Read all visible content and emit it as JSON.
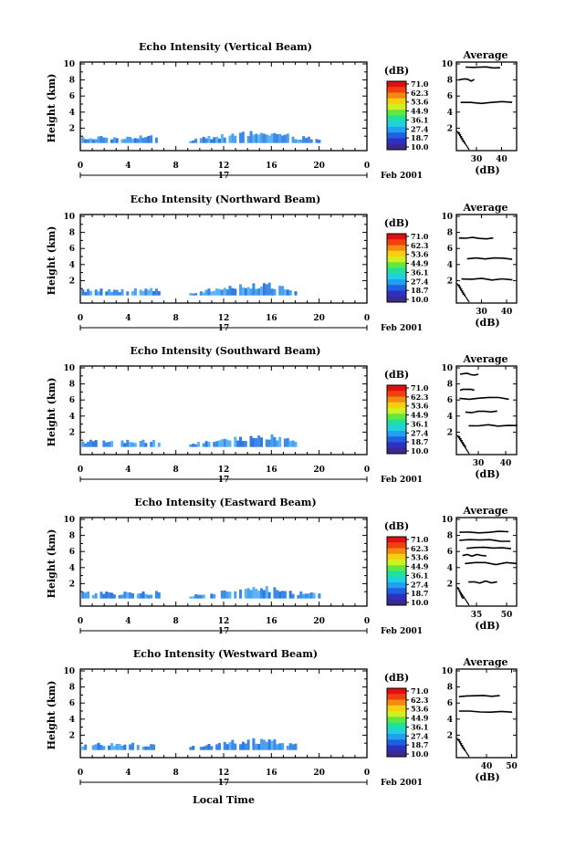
{
  "figure": {
    "date_label": "Feb 2001",
    "xlabel": "Local Time",
    "day_label": "17",
    "colorbar_unit": "(dB)",
    "colorbar_ticks": [
      "71.0",
      "62.3",
      "53.6",
      "44.9",
      "36.1",
      "27.4",
      "18.7",
      "10.0"
    ],
    "colorbar_colors": [
      "#e01010",
      "#f04010",
      "#f58a10",
      "#f5d010",
      "#d0f020",
      "#60e840",
      "#20e0a0",
      "#20d0e0",
      "#20a0f0",
      "#2060e0",
      "#3030c0",
      "#3a2a90"
    ],
    "main_xticks": [
      "0",
      "4",
      "8",
      "12",
      "16",
      "20",
      "0"
    ],
    "height_ticks": [
      "10",
      "8",
      "6",
      "4",
      "2"
    ],
    "average_title": "Average",
    "average_xlabel": "(dB)",
    "ylabel": "Height (km)"
  },
  "chart_data": [
    {
      "type": "heatmap",
      "title": "Echo Intensity (Vertical Beam)",
      "xlabel": "Local Time",
      "ylabel": "Height (km)",
      "xlim": [
        0,
        24
      ],
      "ylim": [
        0,
        10
      ],
      "echo_top_km": [
        [
          0,
          1.0
        ],
        [
          4,
          1.0
        ],
        [
          6,
          1.2
        ],
        [
          9,
          0.6
        ],
        [
          12,
          1.3
        ],
        [
          14,
          1.6
        ],
        [
          16,
          1.7
        ],
        [
          18,
          1.0
        ],
        [
          20,
          0.9
        ]
      ],
      "average": {
        "xticks": [
          "30",
          "40"
        ],
        "xlim": [
          22,
          46
        ],
        "noise_km": [
          5.2,
          8.0,
          9.6
        ]
      }
    },
    {
      "type": "heatmap",
      "title": "Echo Intensity (Northward Beam)",
      "xlabel": "Local Time",
      "ylabel": "Height (km)",
      "xlim": [
        0,
        24
      ],
      "ylim": [
        0,
        10
      ],
      "echo_top_km": [
        [
          0,
          1.0
        ],
        [
          4,
          1.0
        ],
        [
          6,
          1.1
        ],
        [
          9,
          0.6
        ],
        [
          12,
          1.3
        ],
        [
          14,
          1.6
        ],
        [
          16,
          1.7
        ],
        [
          18,
          1.0
        ]
      ],
      "average": {
        "xticks": [
          "30",
          "40"
        ],
        "xlim": [
          20,
          44
        ],
        "noise_km": [
          2.2,
          4.7,
          7.3
        ]
      }
    },
    {
      "type": "heatmap",
      "title": "Echo Intensity (Southward Beam)",
      "xlabel": "Local Time",
      "ylabel": "Height (km)",
      "xlim": [
        0,
        24
      ],
      "ylim": [
        0,
        10
      ],
      "echo_top_km": [
        [
          0,
          1.0
        ],
        [
          4,
          1.0
        ],
        [
          6,
          1.1
        ],
        [
          9,
          0.6
        ],
        [
          12,
          1.3
        ],
        [
          14,
          1.6
        ],
        [
          16,
          1.7
        ],
        [
          18,
          1.0
        ]
      ],
      "average": {
        "xticks": [
          "30",
          "40"
        ],
        "xlim": [
          22,
          44
        ],
        "noise_km": [
          2.8,
          4.5,
          6.2,
          7.2,
          9.2
        ]
      }
    },
    {
      "type": "heatmap",
      "title": "Echo Intensity (Eastward Beam)",
      "xlabel": "Local Time",
      "ylabel": "Height (km)",
      "xlim": [
        0,
        24
      ],
      "ylim": [
        0,
        10
      ],
      "echo_top_km": [
        [
          0,
          1.0
        ],
        [
          4,
          1.0
        ],
        [
          6,
          1.1
        ],
        [
          9,
          0.6
        ],
        [
          12,
          1.3
        ],
        [
          14,
          1.6
        ],
        [
          16,
          1.7
        ],
        [
          18,
          1.0
        ],
        [
          20,
          0.9
        ]
      ],
      "average": {
        "xticks": [
          "35",
          "50"
        ],
        "xlim": [
          25,
          55
        ],
        "noise_km": [
          2.2,
          4.5,
          5.5,
          6.4,
          7.4,
          8.4
        ]
      }
    },
    {
      "type": "heatmap",
      "title": "Echo Intensity (Westward Beam)",
      "xlabel": "Local Time",
      "ylabel": "Height (km)",
      "xlim": [
        0,
        24
      ],
      "ylim": [
        0,
        10
      ],
      "echo_top_km": [
        [
          0,
          1.0
        ],
        [
          4,
          1.0
        ],
        [
          6,
          1.1
        ],
        [
          9,
          0.6
        ],
        [
          12,
          1.3
        ],
        [
          14,
          1.6
        ],
        [
          16,
          1.7
        ],
        [
          18,
          1.0
        ]
      ],
      "average": {
        "xticks": [
          "40",
          "50"
        ],
        "xlim": [
          28,
          52
        ],
        "noise_km": [
          5.0,
          6.8
        ]
      }
    }
  ]
}
